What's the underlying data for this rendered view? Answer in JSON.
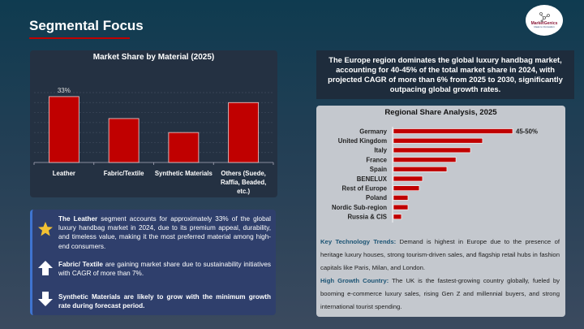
{
  "header": {
    "title": "Segmental Focus",
    "logo_text": "MarketGenics",
    "logo_tagline": "Ideas to Innovation"
  },
  "colors": {
    "accent": "#c00000",
    "panel_dark": "#243142",
    "panel_blue": "#2f3f6c",
    "panel_light": "#c4c8ce",
    "highlight_text": "#1c5474"
  },
  "chart_data": [
    {
      "type": "bar",
      "title": "Market Share by Material (2025)",
      "categories": [
        "Leather",
        "Fabric/Textile",
        "Synthetic Materials",
        "Others (Suede, Raffia, Beaded, etc.)"
      ],
      "values": [
        33,
        22,
        15,
        30
      ],
      "data_labels": [
        "33%",
        "",
        "",
        ""
      ],
      "ylim": [
        0,
        35
      ],
      "grid": true,
      "unit": "%"
    },
    {
      "type": "bar",
      "orientation": "horizontal",
      "title": "Regional Share Analysis, 2025",
      "categories": [
        "Germany",
        "United Kingdom",
        "Italy",
        "France",
        "Spain",
        "BENELUX",
        "Rest of Europe",
        "Poland",
        "Nordic Sub-region",
        "Russia & CIS"
      ],
      "values": [
        47.5,
        35.5,
        30.7,
        24.9,
        21.3,
        11.6,
        10.3,
        5.8,
        5.8,
        3.2
      ],
      "data_labels": [
        "45-50%",
        "",
        "",
        "",
        "",
        "",
        "",
        "",
        "",
        ""
      ],
      "grid": false
    }
  ],
  "insights": [
    {
      "icon": "star-icon",
      "bold": "The Leather",
      "text": " segment accounts for approximately 33% of the global luxury handbag market in 2024, due to its premium appeal, durability, and timeless value, making it the most preferred material among high-end consumers."
    },
    {
      "icon": "arrow-up-icon",
      "bold": "Fabric/ Textile",
      "text": " are gaining market share due to sustainability initiatives with CAGR of more than 7%."
    },
    {
      "icon": "arrow-down-icon",
      "bold": "Synthetic Materials are likely to grow with the minimum growth rate during forecast period.",
      "text": ""
    }
  ],
  "summary": "The Europe region dominates the global luxury handbag market, accounting for 40-45% of the total market share in 2024, with projected CAGR of more than 6% from 2025 to 2030, significantly outpacing global growth rates.",
  "notes": [
    {
      "label": "Key Technology Trends:",
      "text": " Demand is highest in Europe due to the presence of heritage luxury houses, strong tourism-driven sales, and flagship retail hubs in fashion capitals like Paris, Milan, and London."
    },
    {
      "label": "High Growth Country:",
      "text": " The UK is the fastest-growing country globally, fueled by booming e-commerce luxury sales, rising Gen Z and millennial buyers, and strong international tourist spending."
    }
  ]
}
